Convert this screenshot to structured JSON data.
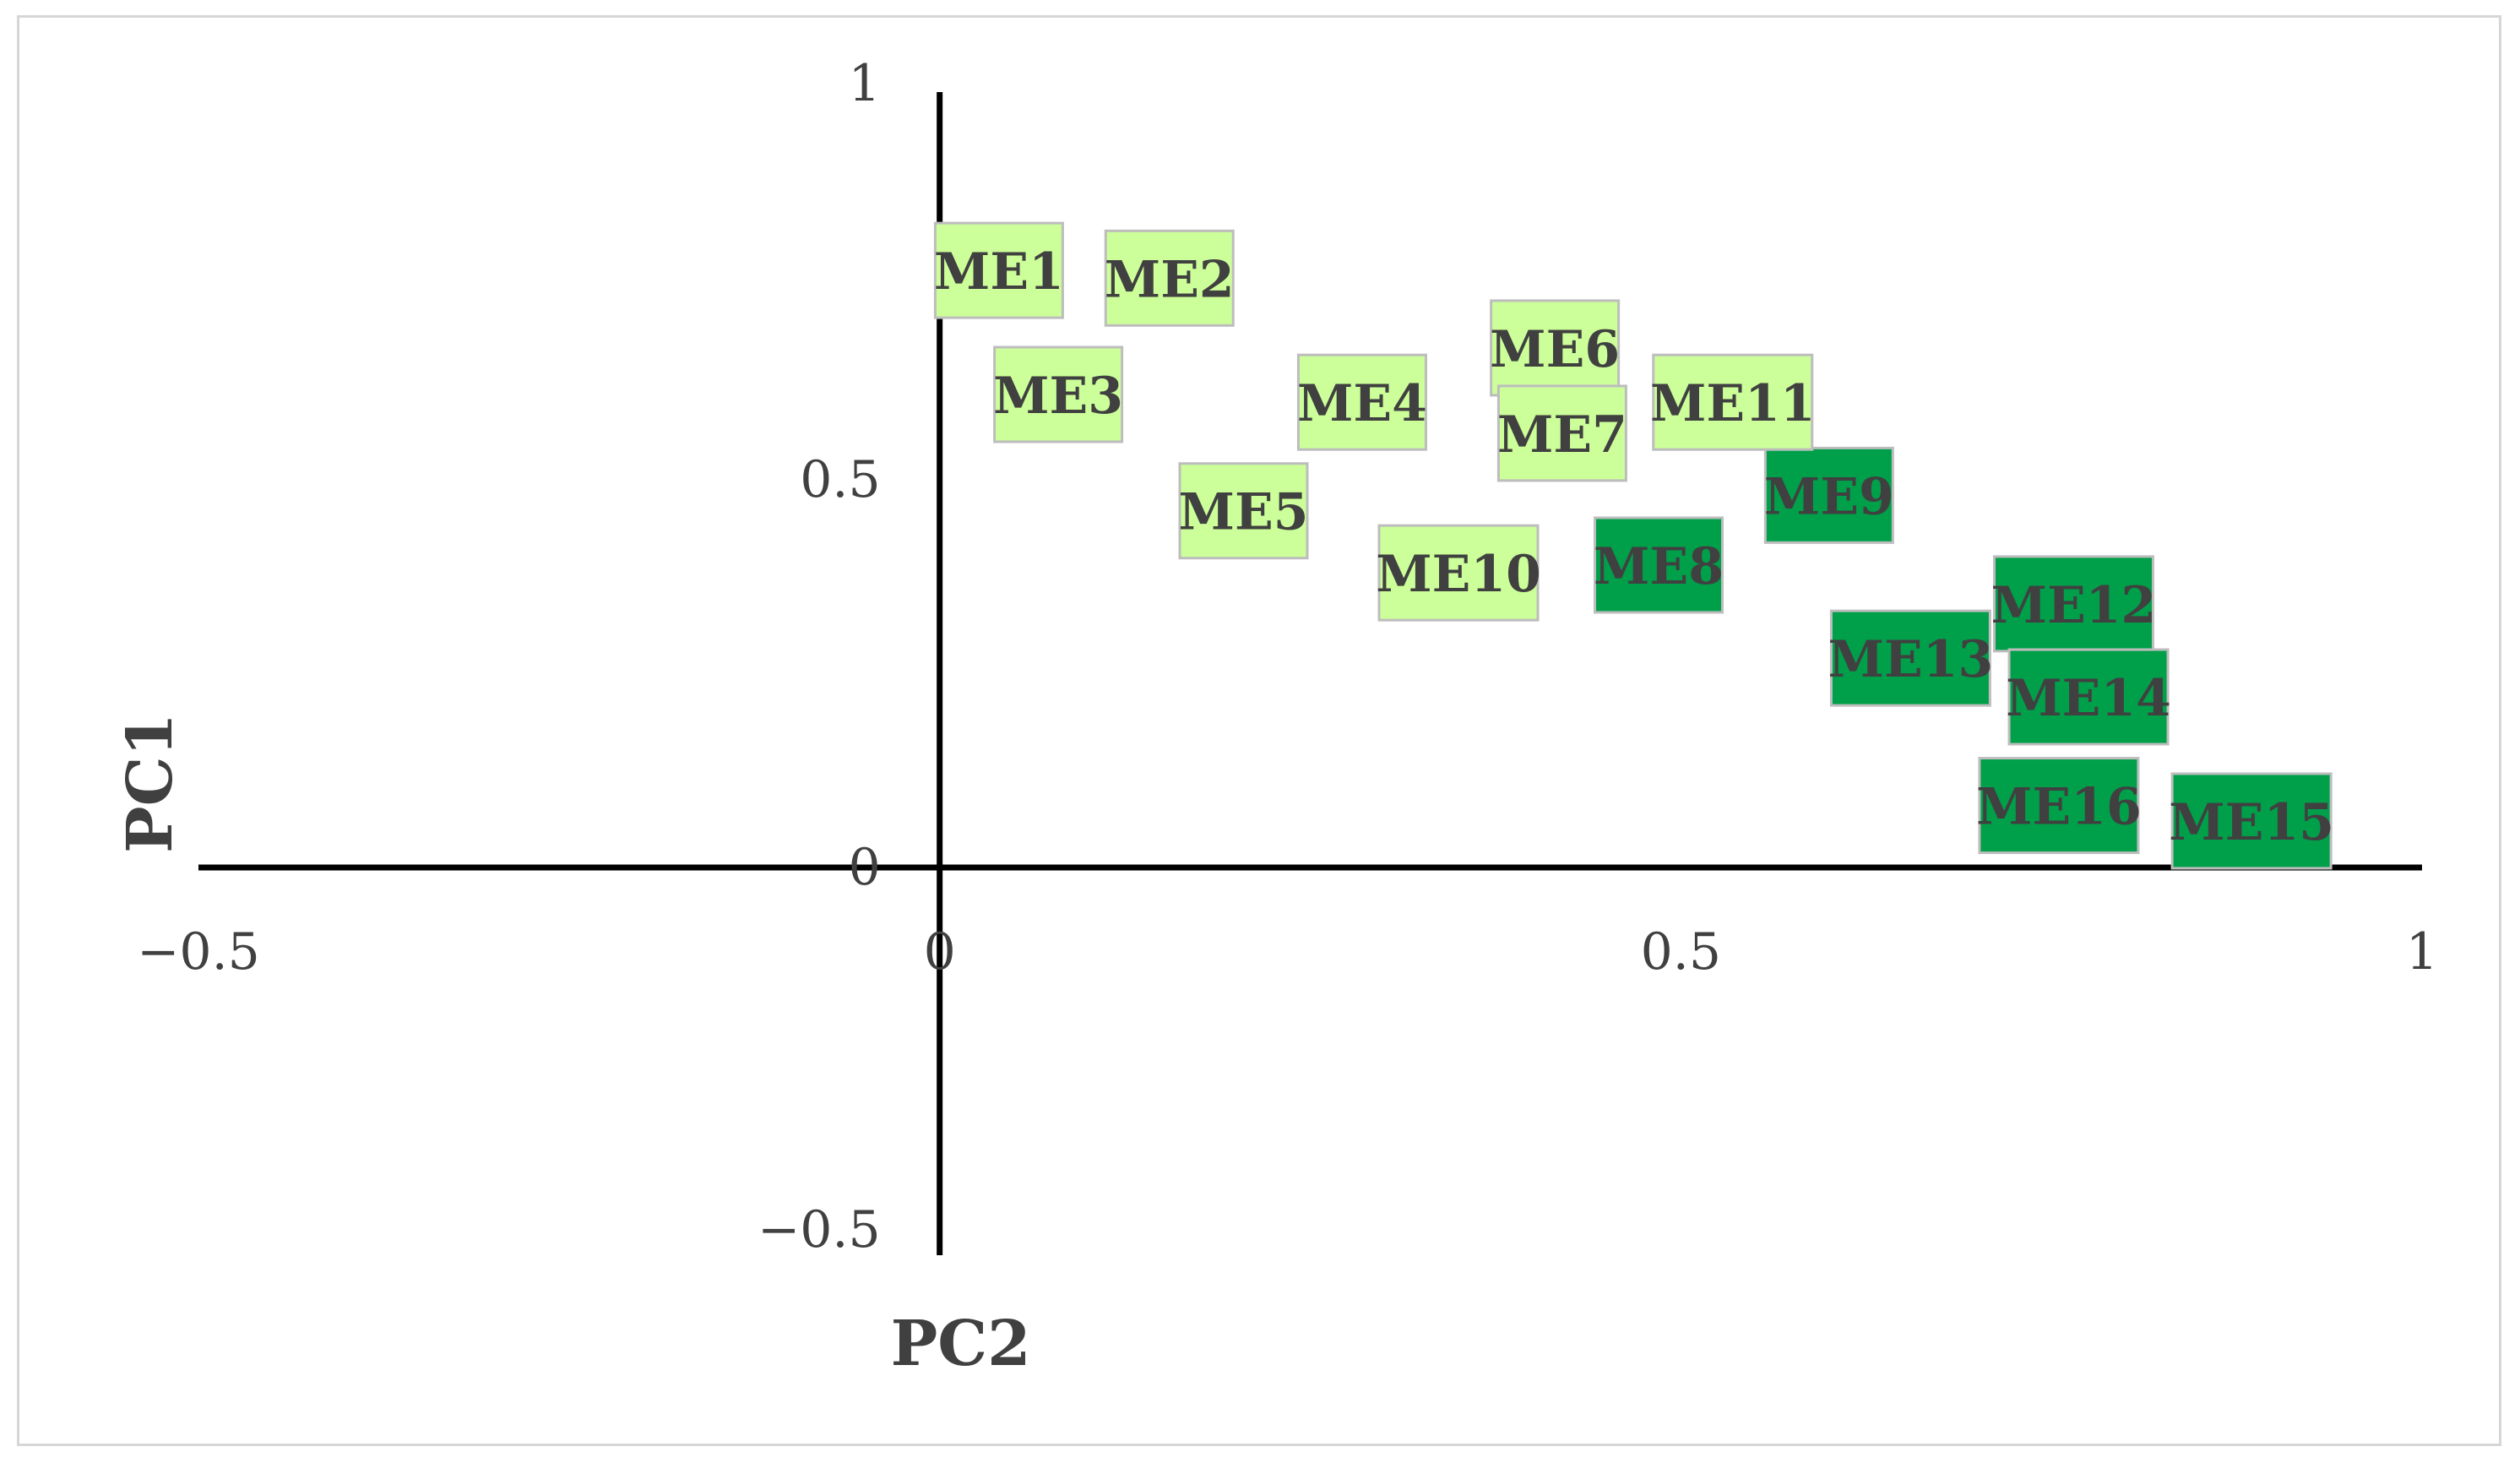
{
  "chart_data": {
    "type": "scatter",
    "title": "",
    "xlabel": "PC2",
    "ylabel": "PC1",
    "xlim": [
      -0.5,
      1
    ],
    "ylim": [
      -0.5,
      1
    ],
    "x_ticks": [
      "−0.5",
      "0",
      "0.5",
      "1"
    ],
    "y_ticks": [
      "−0.5",
      "0",
      "0.5",
      "1"
    ],
    "grid": false,
    "legend": "none",
    "colors": {
      "light_group": "#ccff99",
      "dark_group": "#00a04a",
      "label_border": "#bdbdbd",
      "axis": "#000000",
      "text": "#404040"
    },
    "points": [
      {
        "label": "ME1",
        "x": 0.04,
        "y": 0.77,
        "group": "light"
      },
      {
        "label": "ME2",
        "x": 0.155,
        "y": 0.76,
        "group": "light"
      },
      {
        "label": "ME3",
        "x": 0.08,
        "y": 0.61,
        "group": "light"
      },
      {
        "label": "ME4",
        "x": 0.285,
        "y": 0.6,
        "group": "light"
      },
      {
        "label": "ME5",
        "x": 0.205,
        "y": 0.46,
        "group": "light"
      },
      {
        "label": "ME6",
        "x": 0.415,
        "y": 0.67,
        "group": "light"
      },
      {
        "label": "ME7",
        "x": 0.42,
        "y": 0.56,
        "group": "light"
      },
      {
        "label": "ME8",
        "x": 0.485,
        "y": 0.39,
        "group": "dark"
      },
      {
        "label": "ME9",
        "x": 0.6,
        "y": 0.48,
        "group": "dark"
      },
      {
        "label": "ME10",
        "x": 0.35,
        "y": 0.38,
        "group": "light"
      },
      {
        "label": "ME11",
        "x": 0.535,
        "y": 0.6,
        "group": "light"
      },
      {
        "label": "ME12",
        "x": 0.765,
        "y": 0.34,
        "group": "dark"
      },
      {
        "label": "ME13",
        "x": 0.655,
        "y": 0.27,
        "group": "dark"
      },
      {
        "label": "ME14",
        "x": 0.775,
        "y": 0.22,
        "group": "dark"
      },
      {
        "label": "ME15",
        "x": 0.885,
        "y": 0.06,
        "group": "dark"
      },
      {
        "label": "ME16",
        "x": 0.755,
        "y": 0.08,
        "group": "dark"
      }
    ]
  }
}
